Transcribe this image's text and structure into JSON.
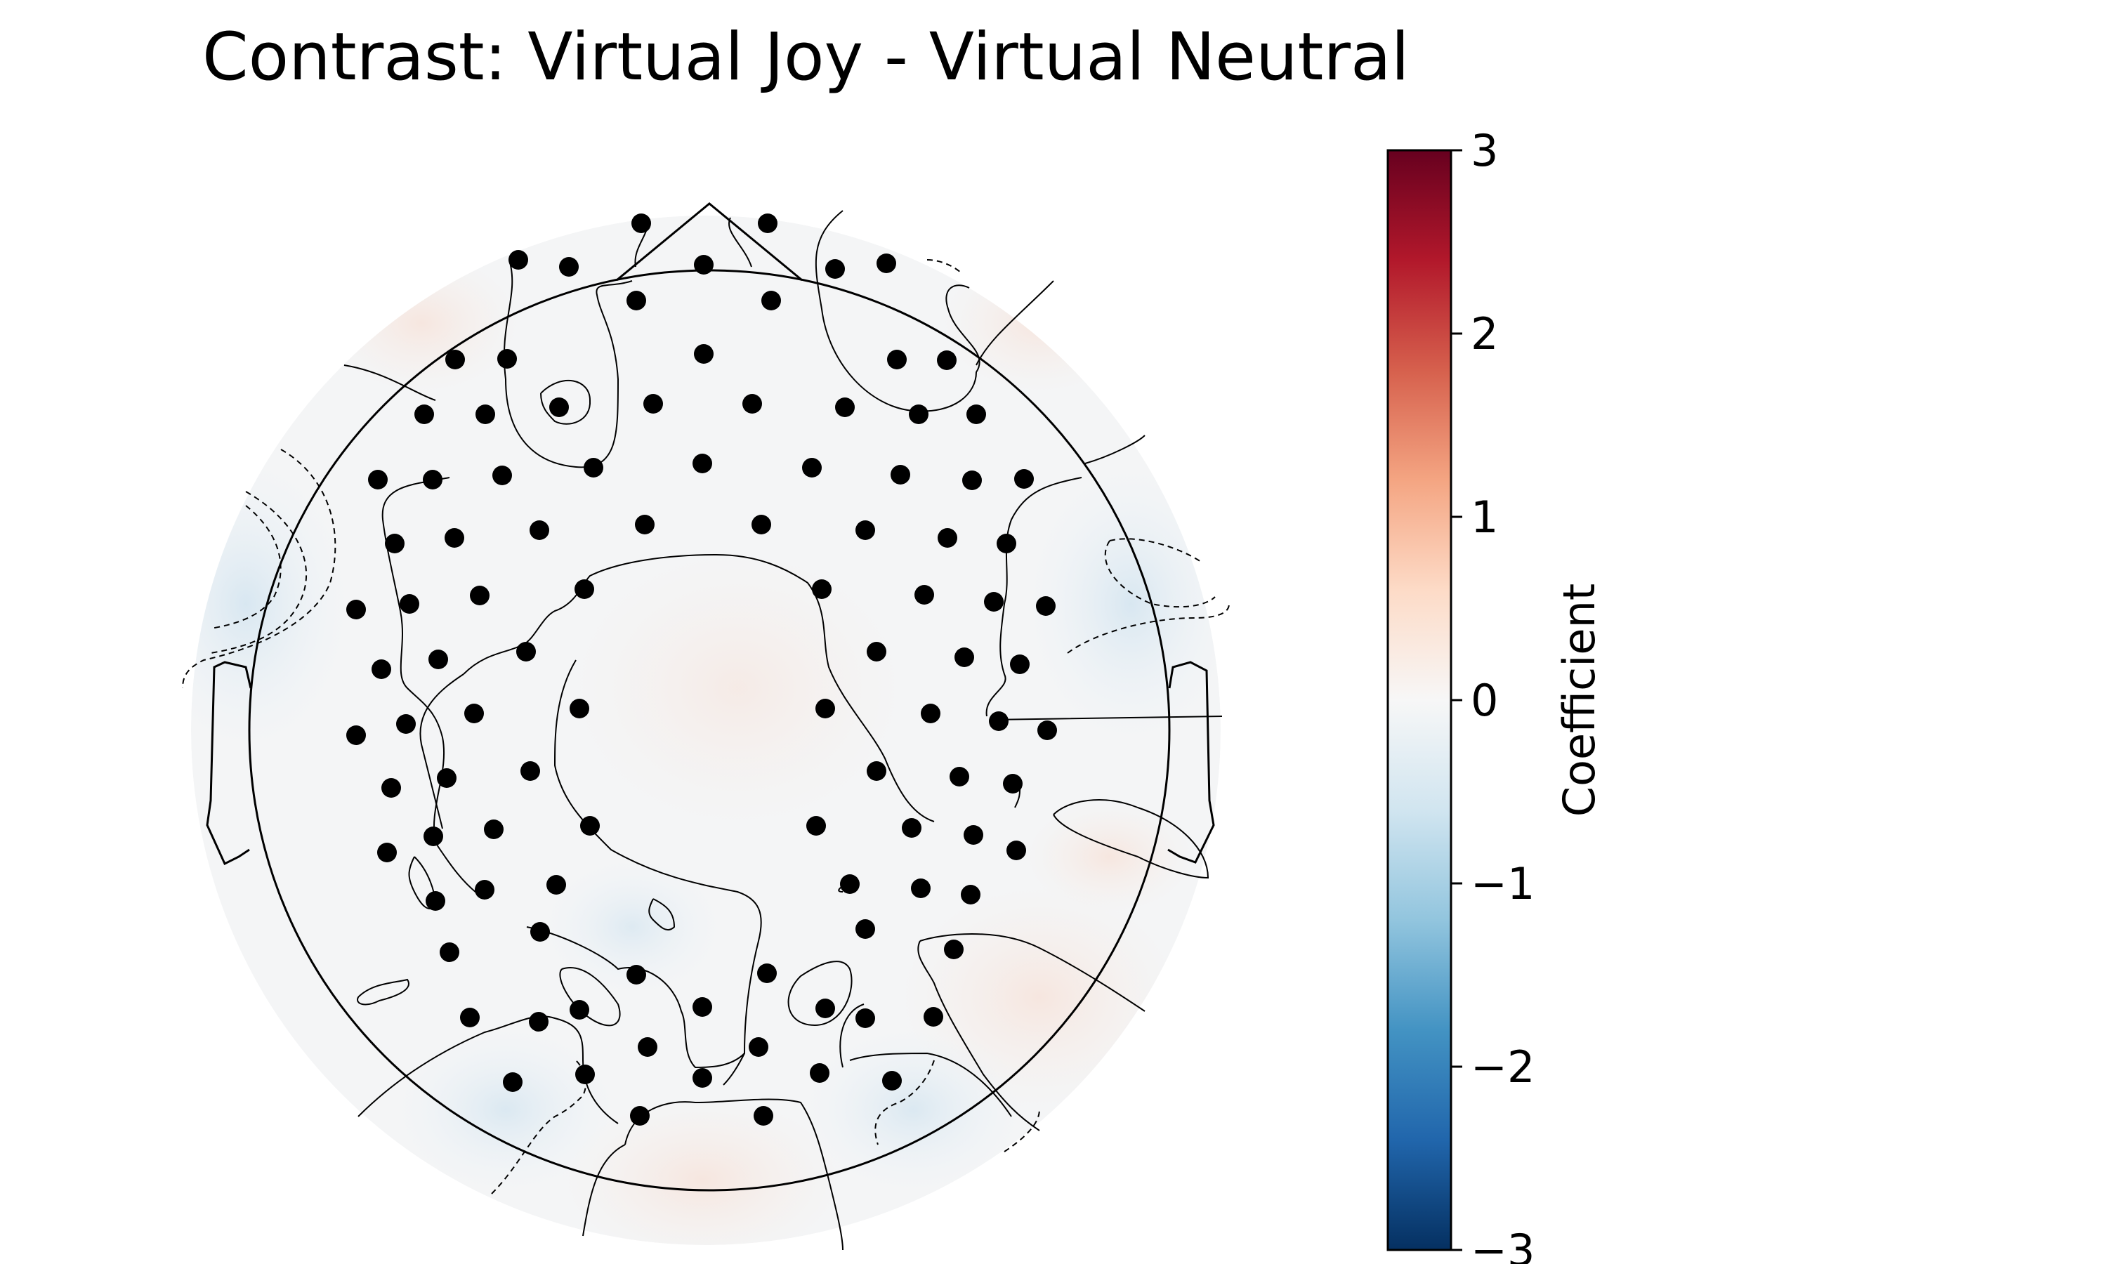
{
  "chart_data": {
    "type": "heatmap",
    "subtype": "topomap",
    "title": "Contrast: Virtual Joy - Virtual Neutral",
    "colorbar": {
      "label": "Coefficient",
      "range": [
        -3,
        3
      ],
      "ticks": [
        3,
        2,
        1,
        0,
        -1,
        -2,
        -3
      ],
      "tick_labels": [
        "3",
        "2",
        "1",
        "0",
        "−1",
        "−2",
        "−3"
      ],
      "colormap": "RdBu_r",
      "colors": [
        "#053061",
        "#2166ac",
        "#4393c3",
        "#92c5de",
        "#d1e5f0",
        "#f7f7f7",
        "#fddbc7",
        "#f4a582",
        "#d6604d",
        "#b2182b",
        "#67001f"
      ]
    },
    "value_range_shown": [
      -0.3,
      0.3
    ],
    "sensor_count": 128,
    "contours": true
  }
}
